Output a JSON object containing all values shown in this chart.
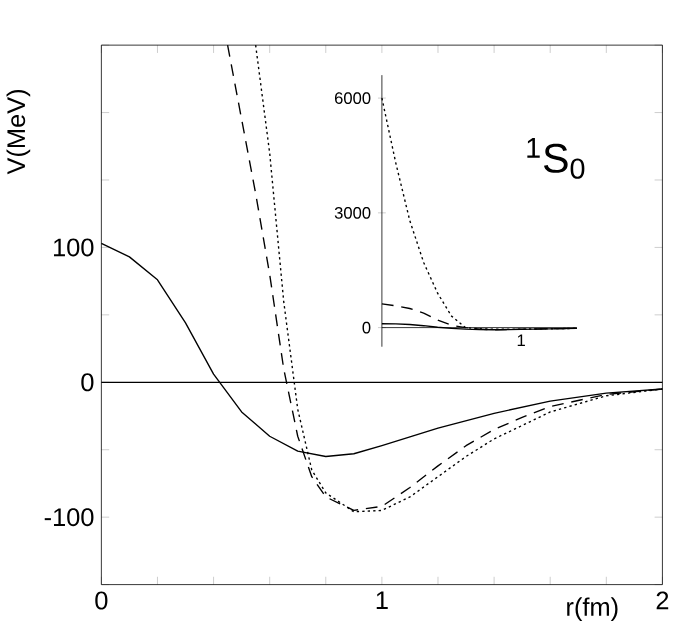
{
  "chart_data": [
    {
      "type": "line",
      "xlabel": "r(fm)",
      "ylabel": "V(MeV)",
      "annotations": [
        "$^{1}$S$_{0}$"
      ],
      "xlim": [
        0,
        2
      ],
      "ylim": [
        -150,
        250
      ],
      "xticks": [
        0,
        {
          "value": 0.2,
          "label": null
        },
        {
          "value": 0.4,
          "label": null
        },
        {
          "value": 0.6,
          "label": null
        },
        {
          "value": 0.8,
          "label": null
        },
        1,
        {
          "value": 1.2,
          "label": null
        },
        {
          "value": 1.4,
          "label": null
        },
        {
          "value": 1.6,
          "label": null
        },
        {
          "value": 1.8,
          "label": null
        },
        2
      ],
      "yticks": [
        {
          "value": -150,
          "label": null
        },
        -100,
        {
          "value": -50,
          "label": null
        },
        0,
        {
          "value": 50,
          "label": null
        },
        100,
        {
          "value": 150,
          "label": null
        },
        {
          "value": 200,
          "label": null
        },
        {
          "value": 250,
          "label": null
        }
      ],
      "ref_lines": [
        {
          "axis": "y",
          "value": 0
        }
      ],
      "series": [
        {
          "color": "#000000",
          "line_style": "solid",
          "x": [
            0,
            0.1,
            0.2,
            0.3,
            0.4,
            0.5,
            0.6,
            0.7,
            0.8,
            0.9,
            1.0,
            1.2,
            1.4,
            1.6,
            1.8,
            2.0
          ],
          "values": [
            103,
            93,
            76,
            44,
            6,
            -22,
            -40,
            -51,
            -55,
            -53,
            -47,
            -34,
            -23,
            -14,
            -8,
            -5
          ]
        },
        {
          "color": "#000000",
          "line_style": "dashed",
          "x": [
            0.45,
            0.5,
            0.55,
            0.6,
            0.65,
            0.7,
            0.75,
            0.8,
            0.9,
            1.0,
            1.1,
            1.2,
            1.3,
            1.4,
            1.5,
            1.6,
            1.8,
            2.0
          ],
          "values": [
            250,
            195,
            140,
            80,
            10,
            -40,
            -70,
            -85,
            -95,
            -92,
            -78,
            -62,
            -47,
            -35,
            -26,
            -18,
            -9,
            -5
          ]
        },
        {
          "color": "#000000",
          "line_style": "dotted",
          "x": [
            0.55,
            0.6,
            0.65,
            0.7,
            0.75,
            0.8,
            0.9,
            1.0,
            1.1,
            1.2,
            1.3,
            1.4,
            1.5,
            1.6,
            1.8,
            2.0
          ],
          "values": [
            250,
            170,
            60,
            -20,
            -65,
            -82,
            -96,
            -95,
            -85,
            -70,
            -55,
            -42,
            -32,
            -22,
            -10,
            -5
          ]
        }
      ]
    },
    {
      "type": "line",
      "categories": [
        null,
        null,
        null,
        null,
        null,
        null,
        null,
        null,
        null,
        null,
        null,
        null,
        null,
        null,
        null
      ],
      "ylim": [
        -500,
        6600
      ],
      "yticks": [
        0,
        3000,
        6000
      ],
      "annotations": [
        "1"
      ],
      "series": [
        {
          "color": "#000000",
          "line_style": "solid",
          "values": [
            100,
            98,
            80,
            50,
            10,
            -20,
            -40,
            -50,
            -55,
            -53,
            -45,
            -40,
            -33,
            -27,
            -20
          ]
        },
        {
          "color": "#000000",
          "line_style": "dashed",
          "values": [
            620,
            570,
            500,
            380,
            200,
            60,
            0,
            -40,
            -60,
            -50,
            -40,
            -35,
            -30,
            -25,
            -20
          ]
        },
        {
          "color": "#000000",
          "line_style": "dotted",
          "values": [
            6000,
            4300,
            2800,
            1700,
            900,
            300,
            0,
            -30,
            -40,
            -40,
            -40,
            -35,
            -30,
            -25,
            -20
          ]
        }
      ]
    }
  ]
}
